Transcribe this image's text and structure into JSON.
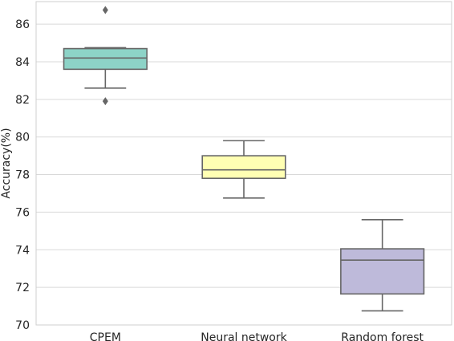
{
  "chart_data": {
    "type": "box",
    "ylabel": "Accuracy(%)",
    "xlabel": "",
    "ylim": [
      70,
      87.2
    ],
    "yticks": [
      70,
      72,
      74,
      76,
      78,
      80,
      82,
      84,
      86
    ],
    "grid": "horizontal",
    "categories": [
      "CPEM",
      "Neural network",
      "Random forest"
    ],
    "boxes": [
      {
        "category": "CPEM",
        "whisker_low": 82.6,
        "q1": 83.6,
        "median": 84.2,
        "q3": 84.7,
        "whisker_high": 84.75,
        "outliers": [
          86.75,
          81.9
        ],
        "color": "#8dd3c7"
      },
      {
        "category": "Neural network",
        "whisker_low": 76.75,
        "q1": 77.8,
        "median": 78.25,
        "q3": 79.0,
        "whisker_high": 79.8,
        "outliers": [],
        "color": "#ffffb3"
      },
      {
        "category": "Random forest",
        "whisker_low": 70.75,
        "q1": 71.65,
        "median": 73.45,
        "q3": 74.05,
        "whisker_high": 75.6,
        "outliers": [],
        "color": "#bebada"
      }
    ],
    "line_color": "#666666",
    "grid_color": "#d9d9d9",
    "axis_color": "#cfcfcf"
  }
}
